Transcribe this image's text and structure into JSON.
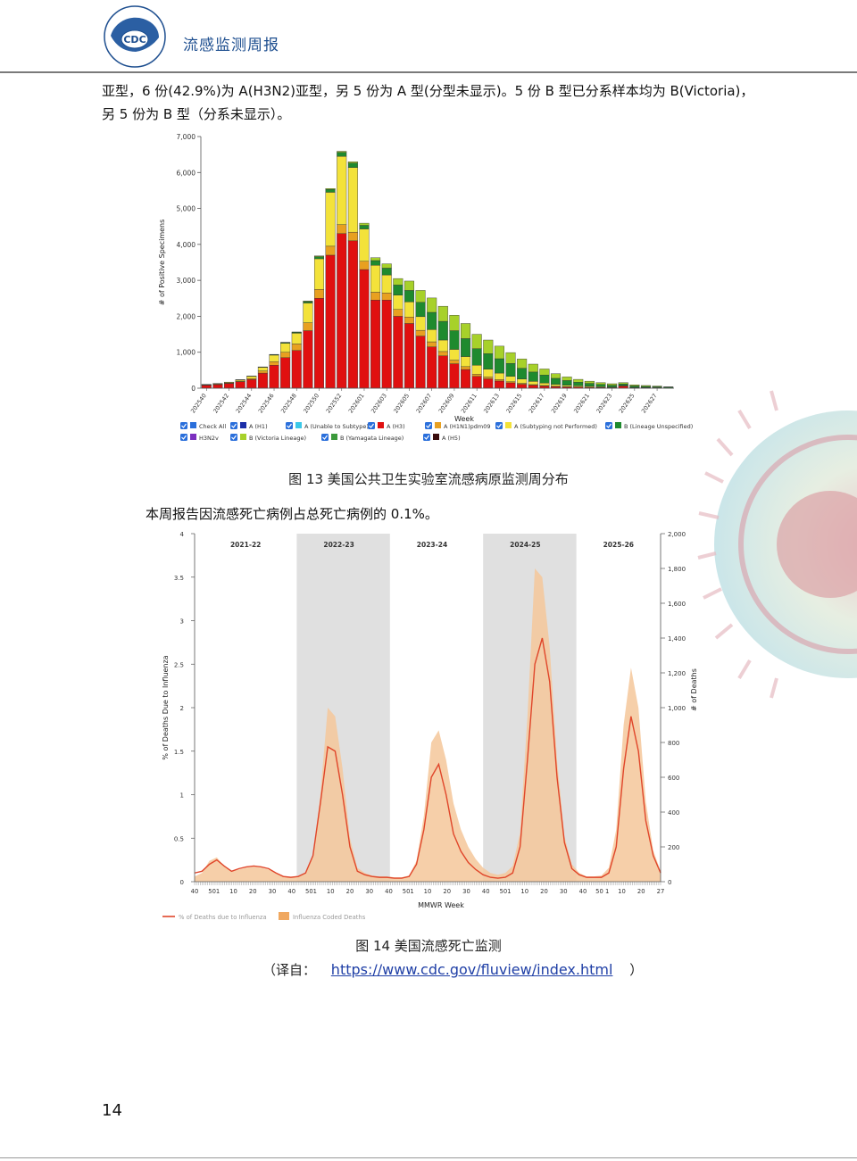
{
  "header": {
    "title": "流感监测周报",
    "logo_text": "CDC"
  },
  "intro": {
    "line1": "亚型，6 份(42.9%)为 A(H3N2)亚型，另 5 份为 A 型(分型未显示)。5 份 B 型已分系样本均为 B(Victoria)，",
    "line2": "另 5 份为 B 型（分系未显示）。"
  },
  "colors": {
    "H3": "#e01010",
    "H1N1pdm09": "#e8a020",
    "A_not_performed": "#f3e23a",
    "B_unspecified": "#1e8a2e",
    "B_victoria": "#a7d12a",
    "H5": "#3a0c0c",
    "shade": "#e0e0e0",
    "deaths_fill": "#f5c79a",
    "pct_line": "#e0462a"
  },
  "chart_data": [
    {
      "type": "bar",
      "stacked": true,
      "ylabel": "# of Positive Specimens",
      "xlabel": "Week",
      "ylim": [
        0,
        7000
      ],
      "yticks": [
        "0",
        "1,000",
        "2,000",
        "3,000",
        "4,000",
        "5,000",
        "6,000",
        "7,000"
      ],
      "tick_labels": [
        "202540",
        "202542",
        "202544",
        "202546",
        "202548",
        "202550",
        "202552",
        "202601",
        "202603",
        "202605",
        "202607",
        "202609",
        "202611",
        "202613",
        "202615",
        "202617",
        "202619",
        "202621",
        "202623",
        "202625",
        "202627"
      ],
      "series": [
        {
          "name": "A (H3)",
          "color": "#e01010",
          "values": [
            80,
            100,
            130,
            180,
            240,
            420,
            640,
            850,
            1050,
            1600,
            2500,
            3700,
            4300,
            4100,
            3300,
            2450,
            2450,
            2000,
            1800,
            1450,
            1150,
            900,
            680,
            520,
            330,
            260,
            200,
            150,
            110,
            80,
            60,
            45,
            35,
            30,
            25,
            20,
            15,
            60,
            10,
            10,
            8,
            5
          ]
        },
        {
          "name": "A (H1N1)pdm09",
          "color": "#e8a020",
          "values": [
            10,
            12,
            15,
            20,
            30,
            60,
            100,
            150,
            180,
            220,
            250,
            250,
            250,
            240,
            230,
            220,
            200,
            190,
            180,
            160,
            140,
            120,
            100,
            80,
            60,
            50,
            40,
            30,
            25,
            20,
            15,
            10,
            8,
            6,
            5,
            5,
            4,
            3,
            3,
            2,
            2,
            1
          ]
        },
        {
          "name": "A (Subtyping not Performed)",
          "color": "#f3e23a",
          "values": [
            10,
            15,
            20,
            30,
            60,
            100,
            180,
            250,
            300,
            550,
            850,
            1500,
            1900,
            1800,
            900,
            750,
            500,
            400,
            420,
            380,
            340,
            320,
            300,
            280,
            250,
            220,
            180,
            150,
            120,
            90,
            70,
            50,
            40,
            30,
            25,
            20,
            15,
            12,
            10,
            8,
            5,
            3
          ]
        },
        {
          "name": "B (Lineage Unspecified)",
          "color": "#1e8a2e",
          "values": [
            2,
            3,
            4,
            5,
            6,
            10,
            15,
            20,
            25,
            40,
            60,
            80,
            110,
            120,
            100,
            130,
            190,
            280,
            320,
            400,
            480,
            520,
            520,
            500,
            460,
            430,
            400,
            360,
            300,
            260,
            220,
            170,
            130,
            100,
            80,
            60,
            50,
            45,
            40,
            30,
            25,
            20
          ]
        },
        {
          "name": "B (Victoria Lineage)",
          "color": "#a7d12a",
          "values": [
            1,
            1,
            1,
            2,
            2,
            3,
            5,
            7,
            10,
            15,
            20,
            25,
            30,
            40,
            60,
            80,
            120,
            180,
            260,
            330,
            400,
            420,
            430,
            420,
            400,
            380,
            350,
            300,
            260,
            220,
            170,
            130,
            100,
            80,
            60,
            50,
            40,
            35,
            30,
            25,
            20,
            10
          ]
        },
        {
          "name": "A (H5)",
          "color": "#3a0c0c",
          "values": [
            0,
            0,
            0,
            0,
            0,
            0,
            0,
            0,
            0,
            0,
            0,
            0,
            0,
            0,
            0,
            0,
            0,
            0,
            0,
            0,
            0,
            0,
            0,
            0,
            0,
            0,
            0,
            0,
            0,
            0,
            0,
            0,
            0,
            0,
            0,
            0,
            0,
            0,
            0,
            0,
            0,
            0
          ]
        }
      ],
      "legend": {
        "items": [
          {
            "label": "Check All",
            "color": "#2a6fdb"
          },
          {
            "label": "A (H1)",
            "color": "#1b2ea8"
          },
          {
            "label": "A (Unable to Subtype)",
            "color": "#3cc8e8"
          },
          {
            "label": "A (H3)",
            "color": "#e01010"
          },
          {
            "label": "A (H1N1)pdm09",
            "color": "#e8a020"
          },
          {
            "label": "A (Subtyping not Performed)",
            "color": "#f3e23a"
          },
          {
            "label": "B (Lineage Unspecified)",
            "color": "#1e8a2e"
          },
          {
            "label": "H3N2v",
            "color": "#7b2fbf"
          },
          {
            "label": "B (Victoria Lineage)",
            "color": "#a7d12a"
          },
          {
            "label": "B (Yamagata Lineage)",
            "color": "#3c9a3c"
          },
          {
            "label": "A (H5)",
            "color": "#3a0c0c"
          }
        ]
      }
    },
    {
      "type": "area",
      "ylabel": "% of Deaths Due to Influenza",
      "y2label": "# of Deaths",
      "xlabel": "MMWR Week",
      "ylim": [
        0,
        4
      ],
      "y2lim": [
        0,
        2000
      ],
      "yticks": [
        "0",
        "0.5",
        "1",
        "1.5",
        "2",
        "2.5",
        "3",
        "3.5",
        "4"
      ],
      "y2ticks": [
        "0",
        "200",
        "400",
        "600",
        "800",
        "1,000",
        "1,200",
        "1,400",
        "1,600",
        "1,800",
        "2,000"
      ],
      "x_tick_labels": [
        "40",
        "501",
        "10",
        "20",
        "30",
        "40",
        "501",
        "10",
        "20",
        "30",
        "40",
        "501",
        "10",
        "20",
        "30",
        "40",
        "501",
        "10",
        "20",
        "30",
        "40",
        "50 1",
        "10",
        "20",
        "27"
      ],
      "seasons": [
        "2021-22",
        "2022-23",
        "2023-24",
        "2024-25",
        "2025-26"
      ],
      "pct_values": [
        0.1,
        0.12,
        0.2,
        0.25,
        0.18,
        0.12,
        0.15,
        0.17,
        0.18,
        0.17,
        0.15,
        0.1,
        0.06,
        0.05,
        0.06,
        0.1,
        0.3,
        0.9,
        1.55,
        1.5,
        1.0,
        0.4,
        0.12,
        0.08,
        0.06,
        0.05,
        0.05,
        0.04,
        0.04,
        0.06,
        0.2,
        0.6,
        1.2,
        1.35,
        1.0,
        0.55,
        0.35,
        0.22,
        0.14,
        0.08,
        0.05,
        0.04,
        0.05,
        0.1,
        0.4,
        1.4,
        2.5,
        2.8,
        2.3,
        1.2,
        0.45,
        0.15,
        0.08,
        0.05,
        0.05,
        0.05,
        0.1,
        0.4,
        1.3,
        1.9,
        1.5,
        0.7,
        0.3,
        0.1
      ],
      "deaths_values": [
        30,
        50,
        120,
        140,
        90,
        60,
        70,
        80,
        85,
        80,
        70,
        50,
        30,
        25,
        30,
        50,
        150,
        500,
        1000,
        950,
        650,
        250,
        80,
        50,
        35,
        30,
        30,
        25,
        25,
        35,
        120,
        380,
        800,
        870,
        700,
        450,
        300,
        200,
        130,
        80,
        50,
        40,
        50,
        90,
        280,
        950,
        1800,
        1750,
        1350,
        700,
        260,
        100,
        50,
        30,
        30,
        35,
        80,
        300,
        900,
        1230,
        1000,
        460,
        180,
        60
      ],
      "legend": [
        {
          "label": "% of Deaths due to Influenza",
          "color": "#e0462a"
        },
        {
          "label": "Influenza Coded Deaths",
          "color": "#f0a860"
        }
      ]
    }
  ],
  "fig13": {
    "caption": "图 13   美国公共卫生实验室流感病原监测周分布"
  },
  "mid_text": "本周报告因流感死亡病例占总死亡病例的 0.1%。",
  "fig14": {
    "caption": "图 14   美国流感死亡监测",
    "source_prefix": "（译自：",
    "source_link": "https://www.cdc.gov/fluview/index.html",
    "source_suffix": "）"
  },
  "page_number": "14"
}
